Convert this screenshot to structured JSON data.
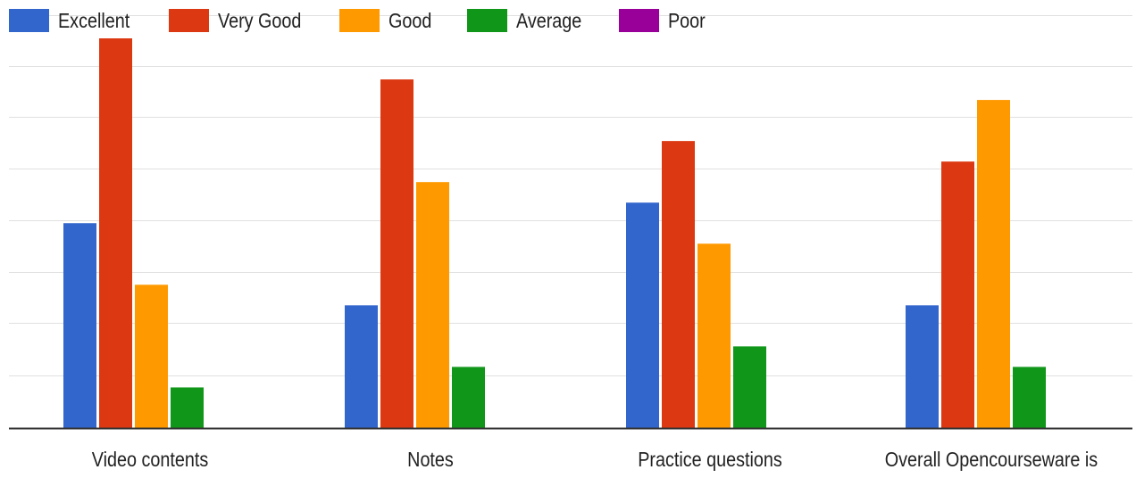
{
  "chart_data": {
    "type": "bar",
    "categories": [
      "Video contents",
      "Notes",
      "Practice questions",
      "Overall Opencourseware is"
    ],
    "series": [
      {
        "name": "Excellent",
        "color": "#3366cc",
        "values": [
          10,
          6,
          11,
          6
        ]
      },
      {
        "name": "Very Good",
        "color": "#dc3912",
        "values": [
          19,
          17,
          14,
          13
        ]
      },
      {
        "name": "Good",
        "color": "#ff9900",
        "values": [
          7,
          12,
          9,
          16
        ]
      },
      {
        "name": "Average",
        "color": "#109618",
        "values": [
          2,
          3,
          4,
          3
        ]
      },
      {
        "name": "Poor",
        "color": "#990099",
        "values": [
          0,
          0,
          0,
          0
        ]
      }
    ],
    "ylim": [
      0,
      19
    ],
    "grid": true,
    "legend": "top-left"
  }
}
